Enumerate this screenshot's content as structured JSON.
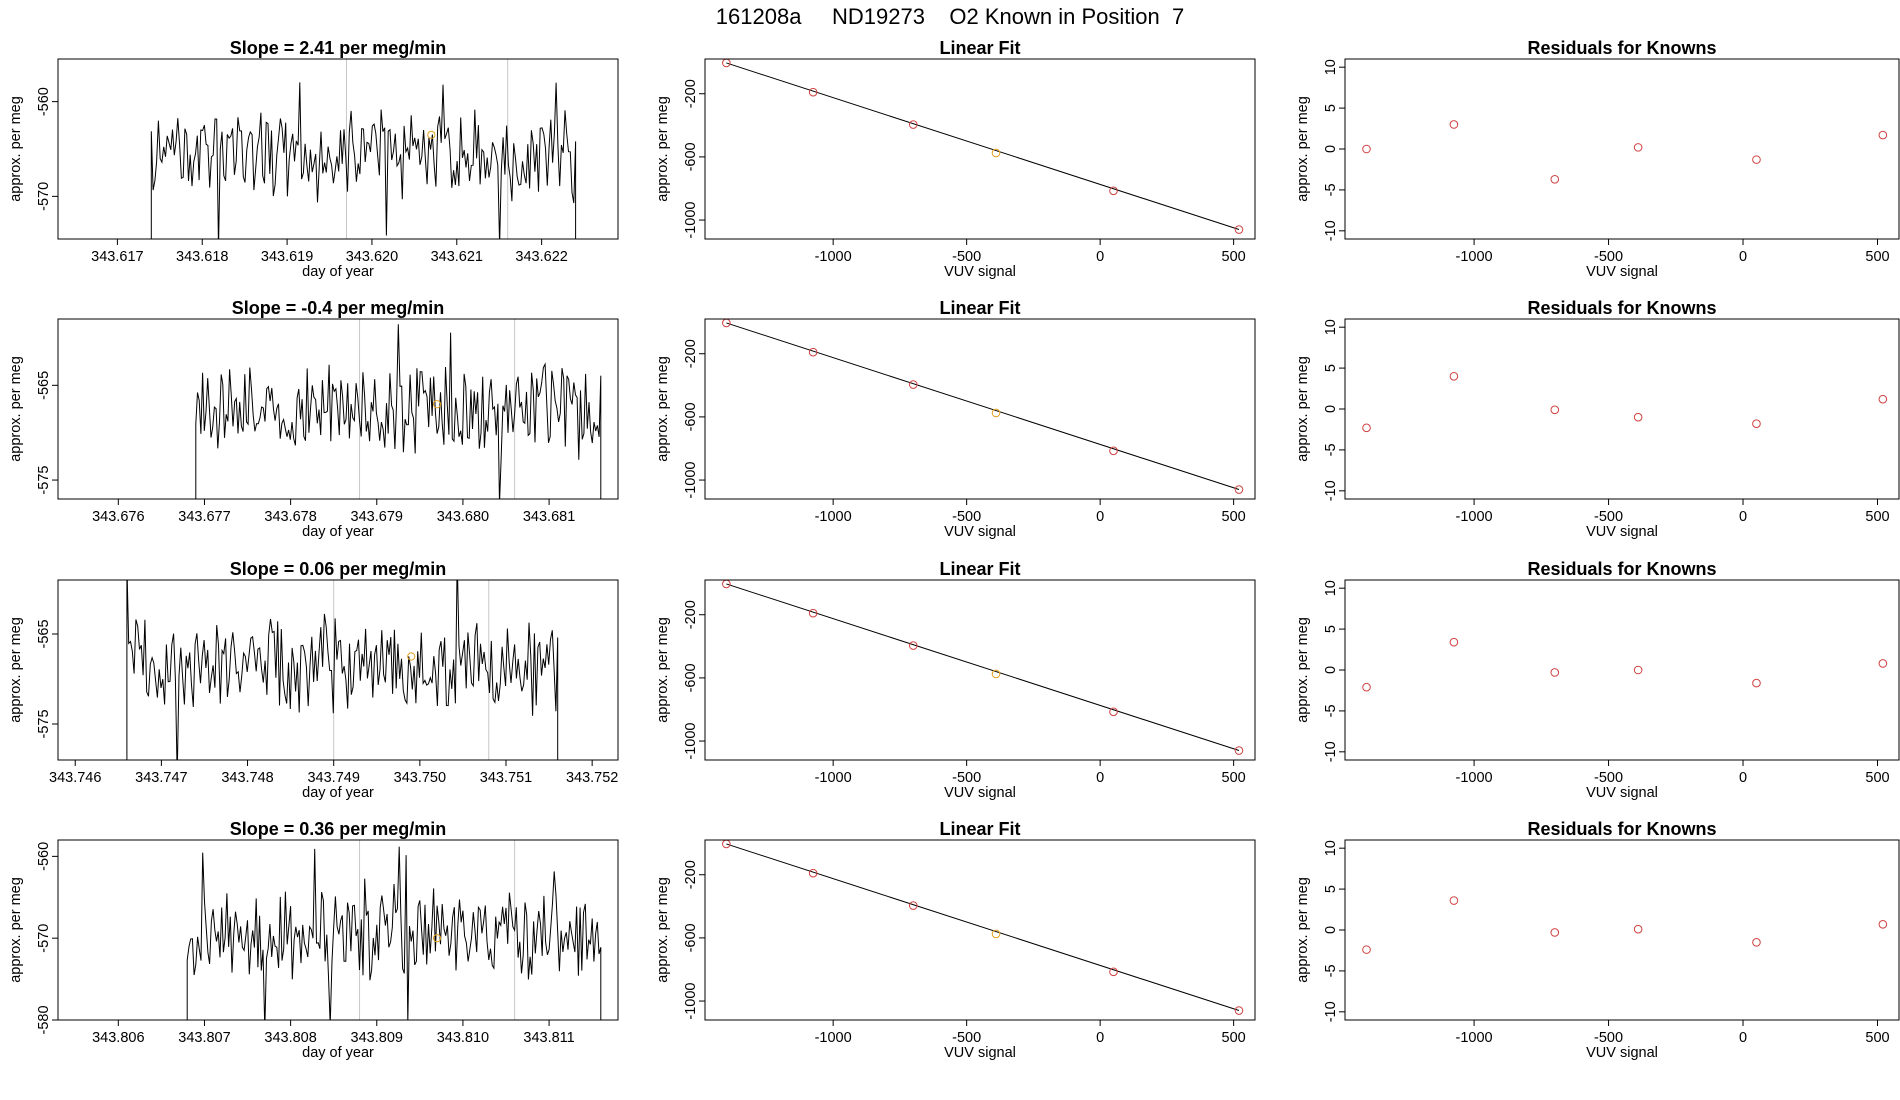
{
  "figure_title": "161208a     ND19273    O2 Known in Position  7",
  "colors": {
    "trace": "#000000",
    "fit_point": "#d04040",
    "known_point": "#e0a020",
    "axis": "#000000",
    "marker_line": "#c8c8c8"
  },
  "chart_data": [
    {
      "type": "line",
      "panel": "row1-timeseries",
      "title": "Slope =  2.41  per meg/min",
      "xlabel": "day of year",
      "ylabel": "approx. per meg",
      "xlim": [
        343.6163,
        343.6229
      ],
      "ylim": [
        -574.5,
        -555.5
      ],
      "xticks": [
        343.617,
        343.618,
        343.619,
        343.62,
        343.621,
        343.622
      ],
      "xtick_labels": [
        "343.617",
        "343.618",
        "343.619",
        "343.620",
        "343.621",
        "343.622"
      ],
      "yticks": [
        -570,
        -560
      ],
      "ytick_labels": [
        "-570",
        "-560"
      ],
      "vlines": [
        343.6197,
        343.6216
      ],
      "x_start": 343.6174,
      "x_end": 343.6224,
      "baseline": -565.5,
      "amplitude": 3.8,
      "seed": 11,
      "marker": {
        "x": 343.6207,
        "y": -563.5
      }
    },
    {
      "type": "scatter",
      "panel": "row1-linearfit",
      "title": "Linear Fit",
      "xlabel": "VUV signal",
      "ylabel": "approx. per meg",
      "xlim": [
        -1480,
        580
      ],
      "ylim": [
        -1120,
        20
      ],
      "xticks": [
        -1000,
        -500,
        0,
        500
      ],
      "xtick_labels": [
        "-1000",
        "-500",
        "0",
        "500"
      ],
      "yticks": [
        -1000,
        -600,
        -200
      ],
      "ytick_labels": [
        "-1000",
        "-600",
        "-200"
      ],
      "fit_line": {
        "x": [
          -1400,
          520
        ],
        "y": [
          -5,
          -1060
        ]
      },
      "points": {
        "x": [
          -1400,
          -1075,
          -700,
          -390,
          50,
          520
        ],
        "y": [
          -5,
          -190,
          -395,
          -575,
          -815,
          -1060
        ]
      },
      "known_index": 3
    },
    {
      "type": "scatter",
      "panel": "row1-residuals",
      "title": "Residuals for Knowns",
      "xlabel": "VUV signal",
      "ylabel": "approx. per meg",
      "xlim": [
        -1480,
        580
      ],
      "ylim": [
        -11,
        11
      ],
      "xticks": [
        -1000,
        -500,
        0,
        500
      ],
      "xtick_labels": [
        "-1000",
        "-500",
        "0",
        "500"
      ],
      "yticks": [
        -10,
        -5,
        0,
        5,
        10
      ],
      "ytick_labels": [
        "-10",
        "-5",
        "0",
        "5",
        "10"
      ],
      "points": {
        "x": [
          -1400,
          -1075,
          -700,
          -390,
          50,
          520
        ],
        "y": [
          0,
          3,
          -3.7,
          0.2,
          -1.3,
          1.7
        ]
      }
    },
    {
      "type": "line",
      "panel": "row2-timeseries",
      "title": "Slope =  -0.4  per meg/min",
      "xlabel": "day of year",
      "ylabel": "approx. per meg",
      "xlim": [
        343.6753,
        343.6818
      ],
      "ylim": [
        -577,
        -558
      ],
      "xticks": [
        343.676,
        343.677,
        343.678,
        343.679,
        343.68,
        343.681
      ],
      "xtick_labels": [
        "343.676",
        "343.677",
        "343.678",
        "343.679",
        "343.680",
        "343.681"
      ],
      "yticks": [
        -575,
        -565
      ],
      "ytick_labels": [
        "-575",
        "-565"
      ],
      "vlines": [
        343.6788,
        343.6806
      ],
      "x_start": 343.6769,
      "x_end": 343.6816,
      "baseline": -567.5,
      "amplitude": 4.0,
      "seed": 23,
      "marker": {
        "x": 343.6797,
        "y": -567.0
      }
    },
    {
      "type": "scatter",
      "panel": "row2-linearfit",
      "title": "Linear Fit",
      "xlabel": "VUV signal",
      "ylabel": "approx. per meg",
      "xlim": [
        -1480,
        580
      ],
      "ylim": [
        -1120,
        20
      ],
      "xticks": [
        -1000,
        -500,
        0,
        500
      ],
      "xtick_labels": [
        "-1000",
        "-500",
        "0",
        "500"
      ],
      "yticks": [
        -1000,
        -600,
        -200
      ],
      "ytick_labels": [
        "-1000",
        "-600",
        "-200"
      ],
      "fit_line": {
        "x": [
          -1400,
          520
        ],
        "y": [
          -5,
          -1060
        ]
      },
      "points": {
        "x": [
          -1400,
          -1075,
          -700,
          -390,
          50,
          520
        ],
        "y": [
          -5,
          -190,
          -395,
          -575,
          -815,
          -1060
        ]
      },
      "known_index": 3
    },
    {
      "type": "scatter",
      "panel": "row2-residuals",
      "title": "Residuals for Knowns",
      "xlabel": "VUV signal",
      "ylabel": "approx. per meg",
      "xlim": [
        -1480,
        580
      ],
      "ylim": [
        -11,
        11
      ],
      "xticks": [
        -1000,
        -500,
        0,
        500
      ],
      "xtick_labels": [
        "-1000",
        "-500",
        "0",
        "500"
      ],
      "yticks": [
        -10,
        -5,
        0,
        5,
        10
      ],
      "ytick_labels": [
        "-10",
        "-5",
        "0",
        "5",
        "10"
      ],
      "points": {
        "x": [
          -1400,
          -1075,
          -700,
          -390,
          50,
          520
        ],
        "y": [
          -2.3,
          4,
          -0.1,
          -1,
          -1.8,
          1.2
        ]
      }
    },
    {
      "type": "line",
      "panel": "row3-timeseries",
      "title": "Slope =  0.06  per meg/min",
      "xlabel": "day of year",
      "ylabel": "approx. per meg",
      "xlim": [
        343.7458,
        343.7523
      ],
      "ylim": [
        -579,
        -559
      ],
      "xticks": [
        343.746,
        343.747,
        343.748,
        343.749,
        343.75,
        343.751,
        343.752
      ],
      "xtick_labels": [
        "343.746",
        "343.747",
        "343.748",
        "343.749",
        "343.750",
        "343.751",
        "343.752"
      ],
      "yticks": [
        -575,
        -565
      ],
      "ytick_labels": [
        "-575",
        "-565"
      ],
      "vlines": [
        343.749,
        343.7508
      ],
      "x_start": 343.7466,
      "x_end": 343.7516,
      "baseline": -568.5,
      "amplitude": 4.2,
      "seed": 37,
      "marker": {
        "x": 343.7499,
        "y": -567.5
      }
    },
    {
      "type": "scatter",
      "panel": "row3-linearfit",
      "title": "Linear Fit",
      "xlabel": "VUV signal",
      "ylabel": "approx. per meg",
      "xlim": [
        -1480,
        580
      ],
      "ylim": [
        -1120,
        20
      ],
      "xticks": [
        -1000,
        -500,
        0,
        500
      ],
      "xtick_labels": [
        "-1000",
        "-500",
        "0",
        "500"
      ],
      "yticks": [
        -1000,
        -600,
        -200
      ],
      "ytick_labels": [
        "-1000",
        "-600",
        "-200"
      ],
      "fit_line": {
        "x": [
          -1400,
          520
        ],
        "y": [
          -5,
          -1060
        ]
      },
      "points": {
        "x": [
          -1400,
          -1075,
          -700,
          -390,
          50,
          520
        ],
        "y": [
          -5,
          -190,
          -395,
          -575,
          -815,
          -1060
        ]
      },
      "known_index": 3
    },
    {
      "type": "scatter",
      "panel": "row3-residuals",
      "title": "Residuals for Knowns",
      "xlabel": "VUV signal",
      "ylabel": "approx. per meg",
      "xlim": [
        -1480,
        580
      ],
      "ylim": [
        -11,
        11
      ],
      "xticks": [
        -1000,
        -500,
        0,
        500
      ],
      "xtick_labels": [
        "-1000",
        "-500",
        "0",
        "500"
      ],
      "yticks": [
        -10,
        -5,
        0,
        5,
        10
      ],
      "ytick_labels": [
        "-10",
        "-5",
        "0",
        "5",
        "10"
      ],
      "points": {
        "x": [
          -1400,
          -1075,
          -700,
          -390,
          50,
          520
        ],
        "y": [
          -2.1,
          3.4,
          -0.3,
          0,
          -1.6,
          0.8
        ]
      }
    },
    {
      "type": "line",
      "panel": "row4-timeseries",
      "title": "Slope =  0.36  per meg/min",
      "xlabel": "day of year",
      "ylabel": "approx. per meg",
      "xlim": [
        343.8053,
        343.8118
      ],
      "ylim": [
        -580,
        -558
      ],
      "xticks": [
        343.806,
        343.807,
        343.808,
        343.809,
        343.81,
        343.811
      ],
      "xtick_labels": [
        "343.806",
        "343.807",
        "343.808",
        "343.809",
        "343.810",
        "343.811"
      ],
      "yticks": [
        -580,
        -570,
        -560
      ],
      "ytick_labels": [
        "-580",
        "-570",
        "-560"
      ],
      "vlines": [
        343.8088,
        343.8106
      ],
      "x_start": 343.8068,
      "x_end": 343.8116,
      "baseline": -569.5,
      "amplitude": 4.3,
      "seed": 53,
      "marker": {
        "x": 343.8097,
        "y": -570.0
      }
    },
    {
      "type": "scatter",
      "panel": "row4-linearfit",
      "title": "Linear Fit",
      "xlabel": "VUV signal",
      "ylabel": "approx. per meg",
      "xlim": [
        -1480,
        580
      ],
      "ylim": [
        -1120,
        20
      ],
      "xticks": [
        -1000,
        -500,
        0,
        500
      ],
      "xtick_labels": [
        "-1000",
        "-500",
        "0",
        "500"
      ],
      "yticks": [
        -1000,
        -600,
        -200
      ],
      "ytick_labels": [
        "-1000",
        "-600",
        "-200"
      ],
      "fit_line": {
        "x": [
          -1400,
          520
        ],
        "y": [
          -5,
          -1060
        ]
      },
      "points": {
        "x": [
          -1400,
          -1075,
          -700,
          -390,
          50,
          520
        ],
        "y": [
          -5,
          -190,
          -395,
          -575,
          -815,
          -1060
        ]
      },
      "known_index": 3
    },
    {
      "type": "scatter",
      "panel": "row4-residuals",
      "title": "Residuals for Knowns",
      "xlabel": "VUV signal",
      "ylabel": "approx. per meg",
      "xlim": [
        -1480,
        580
      ],
      "ylim": [
        -11,
        11
      ],
      "xticks": [
        -1000,
        -500,
        0,
        500
      ],
      "xtick_labels": [
        "-1000",
        "-500",
        "0",
        "500"
      ],
      "yticks": [
        -10,
        -5,
        0,
        5,
        10
      ],
      "ytick_labels": [
        "-10",
        "-5",
        "0",
        "5",
        "10"
      ],
      "points": {
        "x": [
          -1400,
          -1075,
          -700,
          -390,
          50,
          520
        ],
        "y": [
          -2.4,
          3.6,
          -0.3,
          0.1,
          -1.5,
          0.7
        ]
      }
    }
  ]
}
